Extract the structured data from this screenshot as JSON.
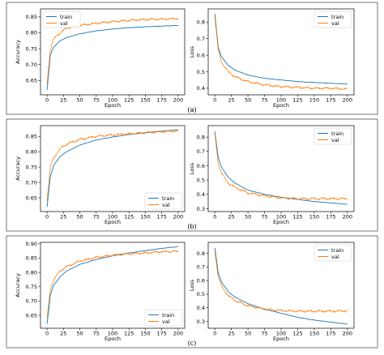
{
  "colors": {
    "train": "#1f77b4",
    "val": "#ff7f0e",
    "axis": "#000000",
    "frame": "#555555"
  },
  "panels": [
    {
      "caption": "(a)",
      "chart_data": [
        {
          "type": "line",
          "xlabel": "Epoch",
          "ylabel": "Accuracy",
          "xlim": [
            -10,
            210
          ],
          "ylim": [
            0.605,
            0.875
          ],
          "xticks": [
            0,
            25,
            50,
            75,
            100,
            125,
            150,
            175,
            200
          ],
          "xtick_labels": [
            "0",
            "25",
            "50",
            "75",
            "100",
            "125",
            "150",
            "175",
            "200"
          ],
          "yticks": [
            0.65,
            0.7,
            0.75,
            0.8,
            0.85
          ],
          "ytick_labels": [
            "0.65",
            "0.70",
            "0.75",
            "0.80",
            "0.85"
          ],
          "grid": false,
          "legend": "top-left",
          "x": [
            0,
            5,
            10,
            20,
            30,
            50,
            75,
            100,
            125,
            150,
            175,
            200
          ],
          "series": [
            {
              "name": "train",
              "values": [
                0.62,
                0.73,
                0.755,
                0.775,
                0.785,
                0.797,
                0.806,
                0.812,
                0.816,
                0.819,
                0.821,
                0.823
              ]
            },
            {
              "name": "val",
              "values": [
                0.64,
                0.75,
                0.78,
                0.8,
                0.815,
                0.823,
                0.83,
                0.835,
                0.839,
                0.842,
                0.843,
                0.845
              ]
            }
          ]
        },
        {
          "type": "line",
          "xlabel": "Epoch",
          "ylabel": "Loss",
          "xlim": [
            -10,
            210
          ],
          "ylim": [
            0.36,
            0.88
          ],
          "xticks": [
            0,
            25,
            50,
            75,
            100,
            125,
            150,
            175,
            200
          ],
          "xtick_labels": [
            "0",
            "25",
            "50",
            "75",
            "100",
            "125",
            "150",
            "175",
            "200"
          ],
          "yticks": [
            0.4,
            0.5,
            0.6,
            0.7,
            0.8
          ],
          "ytick_labels": [
            "0.4",
            "0.5",
            "0.6",
            "0.7",
            "0.8"
          ],
          "grid": false,
          "legend": "top-right",
          "x": [
            0,
            5,
            10,
            20,
            30,
            50,
            75,
            100,
            125,
            150,
            175,
            200
          ],
          "series": [
            {
              "name": "train",
              "values": [
                0.85,
                0.65,
                0.59,
                0.54,
                0.51,
                0.48,
                0.46,
                0.45,
                0.44,
                0.435,
                0.43,
                0.425
              ]
            },
            {
              "name": "val",
              "values": [
                0.83,
                0.63,
                0.56,
                0.5,
                0.47,
                0.44,
                0.42,
                0.41,
                0.405,
                0.4,
                0.4,
                0.395
              ]
            }
          ]
        }
      ]
    },
    {
      "caption": "(b)",
      "chart_data": [
        {
          "type": "line",
          "xlabel": "Epoch",
          "ylabel": "Accuracy",
          "xlim": [
            -10,
            210
          ],
          "ylim": [
            0.605,
            0.885
          ],
          "xticks": [
            0,
            25,
            50,
            75,
            100,
            125,
            150,
            175,
            200
          ],
          "xtick_labels": [
            "0",
            "25",
            "50",
            "75",
            "100",
            "125",
            "150",
            "175",
            "200"
          ],
          "yticks": [
            0.65,
            0.7,
            0.75,
            0.8,
            0.85
          ],
          "ytick_labels": [
            "0.65",
            "0.70",
            "0.75",
            "0.80",
            "0.85"
          ],
          "grid": false,
          "legend": "bottom-right",
          "x": [
            0,
            5,
            10,
            20,
            30,
            50,
            75,
            100,
            125,
            150,
            175,
            200
          ],
          "series": [
            {
              "name": "train",
              "values": [
                0.62,
                0.72,
                0.755,
                0.785,
                0.8,
                0.822,
                0.838,
                0.848,
                0.856,
                0.862,
                0.867,
                0.872
              ]
            },
            {
              "name": "val",
              "values": [
                0.64,
                0.75,
                0.78,
                0.81,
                0.825,
                0.84,
                0.85,
                0.855,
                0.858,
                0.862,
                0.865,
                0.868
              ]
            }
          ]
        },
        {
          "type": "line",
          "xlabel": "Epoch",
          "ylabel": "Loss",
          "xlim": [
            -10,
            210
          ],
          "ylim": [
            0.28,
            0.88
          ],
          "xticks": [
            0,
            25,
            50,
            75,
            100,
            125,
            150,
            175,
            200
          ],
          "xtick_labels": [
            "0",
            "25",
            "50",
            "75",
            "100",
            "125",
            "150",
            "175",
            "200"
          ],
          "yticks": [
            0.3,
            0.4,
            0.5,
            0.6,
            0.7,
            0.8
          ],
          "ytick_labels": [
            "0.3",
            "0.4",
            "0.5",
            "0.6",
            "0.7",
            "0.8"
          ],
          "grid": false,
          "legend": "top-right",
          "x": [
            0,
            5,
            10,
            20,
            30,
            50,
            75,
            100,
            125,
            150,
            175,
            200
          ],
          "series": [
            {
              "name": "train",
              "values": [
                0.84,
                0.66,
                0.59,
                0.52,
                0.48,
                0.43,
                0.4,
                0.38,
                0.365,
                0.35,
                0.34,
                0.33
              ]
            },
            {
              "name": "val",
              "values": [
                0.82,
                0.62,
                0.55,
                0.48,
                0.45,
                0.41,
                0.39,
                0.375,
                0.37,
                0.37,
                0.37,
                0.37
              ]
            }
          ]
        }
      ]
    },
    {
      "caption": "(c)",
      "chart_data": [
        {
          "type": "line",
          "xlabel": "Epoch",
          "ylabel": "Accuracy",
          "xlim": [
            -10,
            210
          ],
          "ylim": [
            0.605,
            0.905
          ],
          "xticks": [
            0,
            25,
            50,
            75,
            100,
            125,
            150,
            175,
            200
          ],
          "xtick_labels": [
            "0",
            "25",
            "50",
            "75",
            "100",
            "125",
            "150",
            "175",
            "200"
          ],
          "yticks": [
            0.65,
            0.7,
            0.75,
            0.8,
            0.85,
            0.9
          ],
          "ytick_labels": [
            "0.65",
            "0.70",
            "0.75",
            "0.80",
            "0.85",
            "0.90"
          ],
          "grid": false,
          "legend": "bottom-right",
          "x": [
            0,
            5,
            10,
            20,
            30,
            50,
            75,
            100,
            125,
            150,
            175,
            200
          ],
          "series": [
            {
              "name": "train",
              "values": [
                0.62,
                0.72,
                0.755,
                0.785,
                0.805,
                0.828,
                0.845,
                0.858,
                0.868,
                0.876,
                0.884,
                0.89
              ]
            },
            {
              "name": "val",
              "values": [
                0.64,
                0.74,
                0.775,
                0.805,
                0.82,
                0.84,
                0.852,
                0.86,
                0.865,
                0.868,
                0.872,
                0.874
              ]
            }
          ]
        },
        {
          "type": "line",
          "xlabel": "Epoch",
          "ylabel": "Loss",
          "xlim": [
            -10,
            210
          ],
          "ylim": [
            0.25,
            0.88
          ],
          "xticks": [
            0,
            25,
            50,
            75,
            100,
            125,
            150,
            175,
            200
          ],
          "xtick_labels": [
            "0",
            "25",
            "50",
            "75",
            "100",
            "125",
            "150",
            "175",
            "200"
          ],
          "yticks": [
            0.3,
            0.4,
            0.5,
            0.6,
            0.7,
            0.8
          ],
          "ytick_labels": [
            "0.3",
            "0.4",
            "0.5",
            "0.6",
            "0.7",
            "0.8"
          ],
          "grid": false,
          "legend": "top-right",
          "x": [
            0,
            5,
            10,
            20,
            30,
            50,
            75,
            100,
            125,
            150,
            175,
            200
          ],
          "series": [
            {
              "name": "train",
              "values": [
                0.84,
                0.66,
                0.59,
                0.52,
                0.48,
                0.43,
                0.39,
                0.36,
                0.33,
                0.31,
                0.295,
                0.28
              ]
            },
            {
              "name": "val",
              "values": [
                0.82,
                0.63,
                0.56,
                0.49,
                0.455,
                0.415,
                0.39,
                0.38,
                0.375,
                0.375,
                0.375,
                0.378
              ]
            }
          ]
        }
      ]
    }
  ]
}
